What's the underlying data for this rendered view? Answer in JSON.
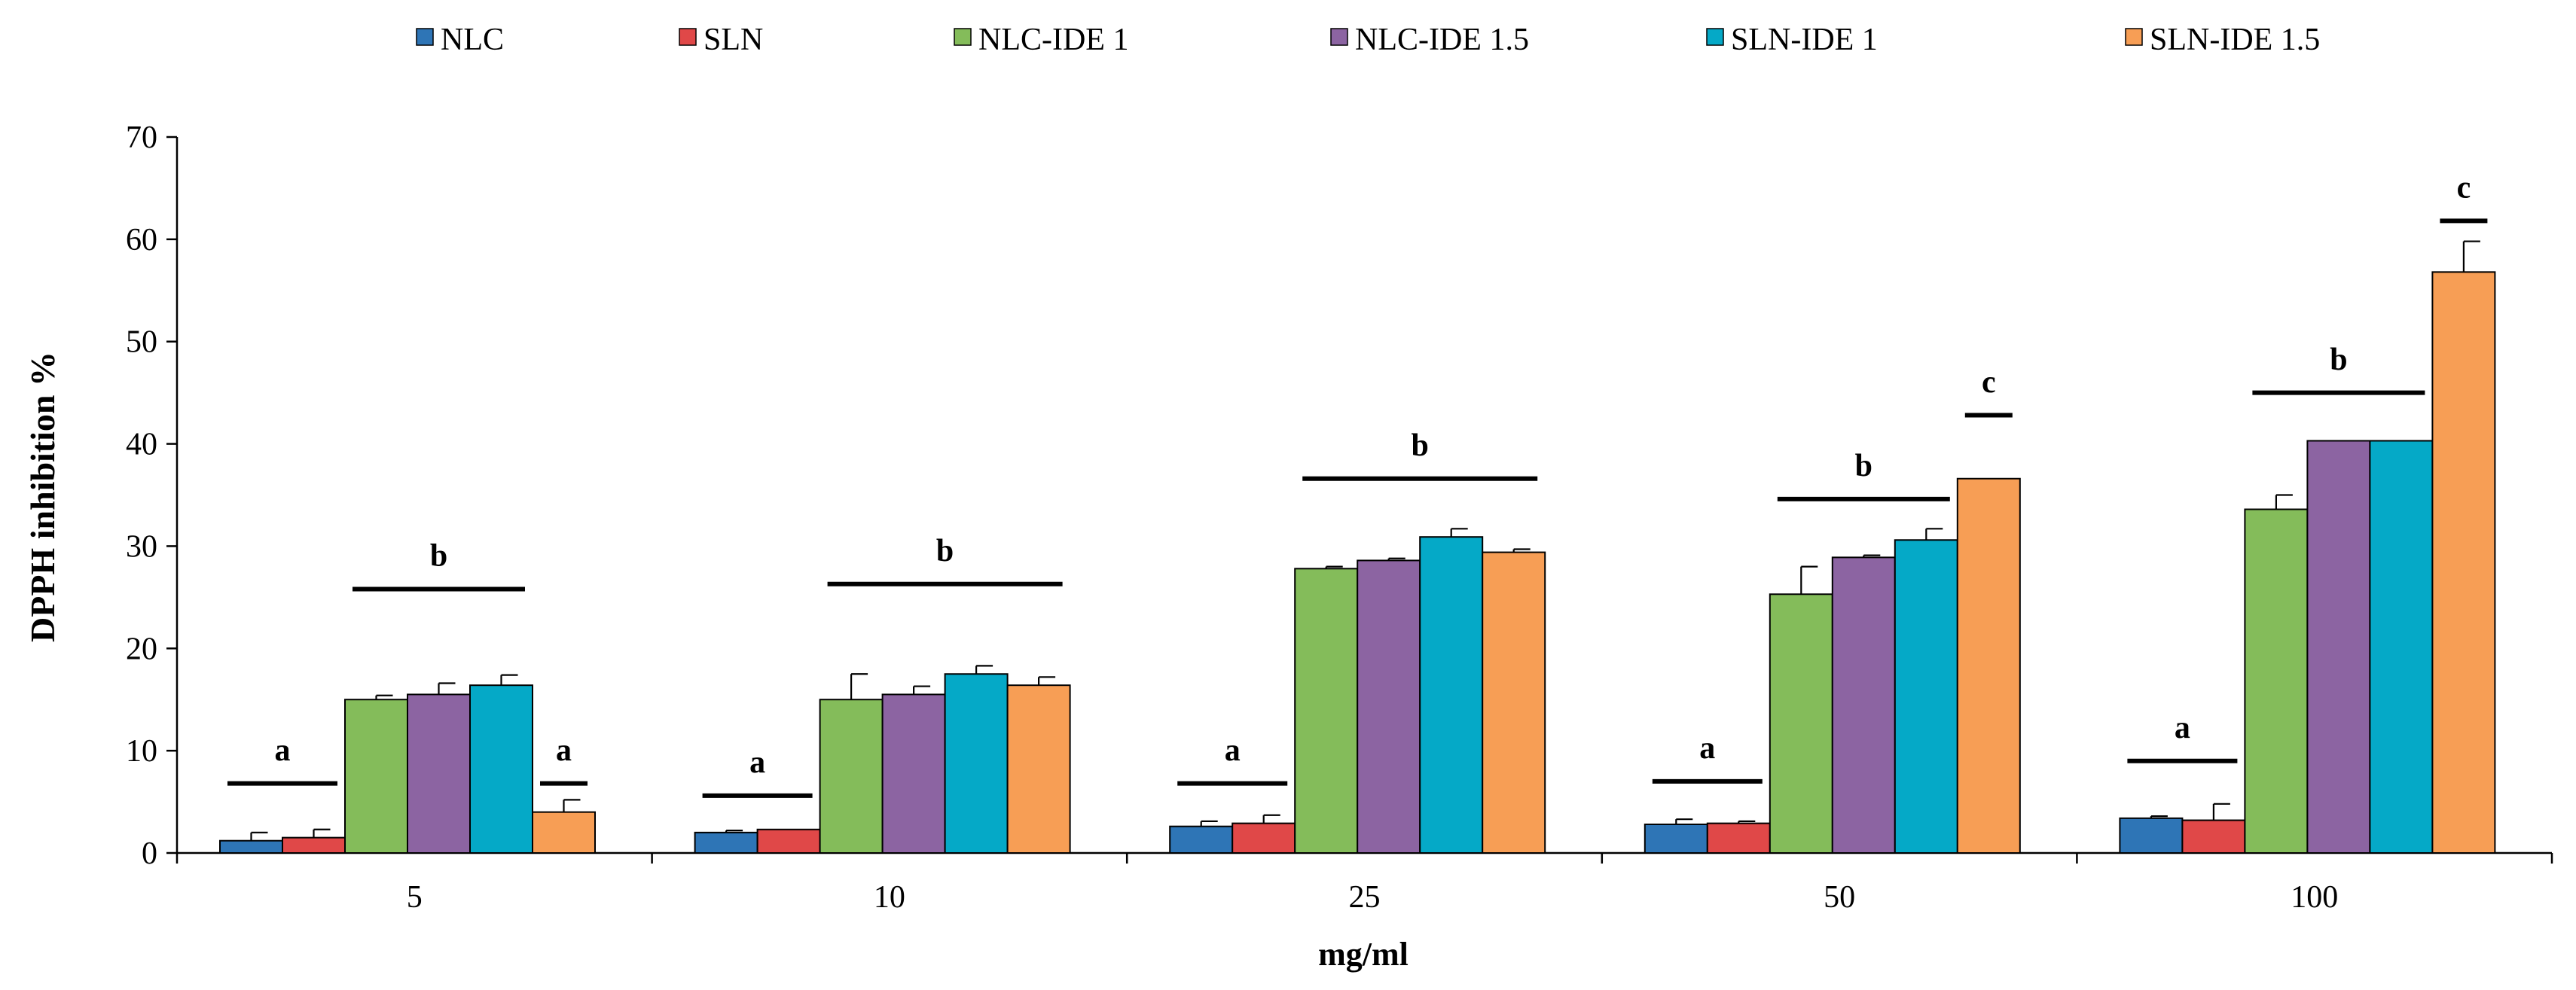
{
  "chart_data": {
    "type": "bar",
    "title": "",
    "xlabel": "mg/ml",
    "ylabel": "DPPH inhibition %",
    "ylim": [
      0,
      70
    ],
    "yticks": [
      0,
      10,
      20,
      30,
      40,
      50,
      60,
      70
    ],
    "categories": [
      "5",
      "10",
      "25",
      "50",
      "100"
    ],
    "legend_position": "top",
    "series": [
      {
        "name": "NLC",
        "color": "#2E75B6",
        "values": [
          1.2,
          2.0,
          2.6,
          2.8,
          3.4
        ],
        "errors": [
          0.8,
          0.2,
          0.5,
          0.5,
          0.2
        ]
      },
      {
        "name": "SLN",
        "color": "#E04848",
        "values": [
          1.5,
          2.3,
          2.9,
          2.9,
          3.2
        ],
        "errors": [
          0.8,
          0.0,
          0.8,
          0.2,
          1.6
        ]
      },
      {
        "name": "NLC-IDE 1",
        "color": "#84BC5A",
        "values": [
          15.0,
          15.0,
          27.8,
          25.3,
          33.6
        ],
        "errors": [
          0.4,
          2.5,
          0.2,
          2.7,
          1.4
        ]
      },
      {
        "name": "NLC-IDE 1.5",
        "color": "#8C64A2",
        "values": [
          15.5,
          15.5,
          28.6,
          28.9,
          40.3
        ],
        "errors": [
          1.1,
          0.8,
          0.2,
          0.2,
          0.0
        ]
      },
      {
        "name": "SLN-IDE 1",
        "color": "#05A9C7",
        "values": [
          16.4,
          17.5,
          30.9,
          30.6,
          40.3
        ],
        "errors": [
          1.0,
          0.8,
          0.8,
          1.1,
          0.0
        ]
      },
      {
        "name": "SLN-IDE 1.5",
        "color": "#F79E55",
        "values": [
          4.0,
          16.4,
          29.4,
          36.6,
          56.8
        ],
        "errors": [
          1.2,
          0.8,
          0.3,
          0.0,
          3.0
        ]
      }
    ],
    "significance": [
      {
        "category": "5",
        "label": "a",
        "series_from": 0,
        "series_to": 1,
        "bar_value": 6.8,
        "label_value": 9.8
      },
      {
        "category": "5",
        "label": "b",
        "series_from": 2,
        "series_to": 4,
        "bar_value": 25.8,
        "label_value": 28.8
      },
      {
        "category": "5",
        "label": "a",
        "series_from": 5,
        "series_to": 5,
        "bar_value": 6.8,
        "label_value": 9.8
      },
      {
        "category": "10",
        "label": "a",
        "series_from": 0,
        "series_to": 1,
        "bar_value": 5.6,
        "label_value": 8.6
      },
      {
        "category": "10",
        "label": "b",
        "series_from": 2,
        "series_to": 5,
        "bar_value": 26.3,
        "label_value": 29.3
      },
      {
        "category": "25",
        "label": "a",
        "series_from": 0,
        "series_to": 1,
        "bar_value": 6.8,
        "label_value": 9.8
      },
      {
        "category": "25",
        "label": "b",
        "series_from": 2,
        "series_to": 5,
        "bar_value": 36.6,
        "label_value": 39.6
      },
      {
        "category": "50",
        "label": "a",
        "series_from": 0,
        "series_to": 1,
        "bar_value": 7.0,
        "label_value": 10.0
      },
      {
        "category": "50",
        "label": "b",
        "series_from": 2,
        "series_to": 4,
        "bar_value": 34.6,
        "label_value": 37.6
      },
      {
        "category": "50",
        "label": "c",
        "series_from": 5,
        "series_to": 5,
        "bar_value": 42.8,
        "label_value": 45.8
      },
      {
        "category": "100",
        "label": "a",
        "series_from": 0,
        "series_to": 1,
        "bar_value": 9.0,
        "label_value": 12.0
      },
      {
        "category": "100",
        "label": "b",
        "series_from": 2,
        "series_to": 4,
        "bar_value": 45.0,
        "label_value": 48.0
      },
      {
        "category": "100",
        "label": "c",
        "series_from": 5,
        "series_to": 5,
        "bar_value": 61.8,
        "label_value": 64.8
      }
    ]
  }
}
